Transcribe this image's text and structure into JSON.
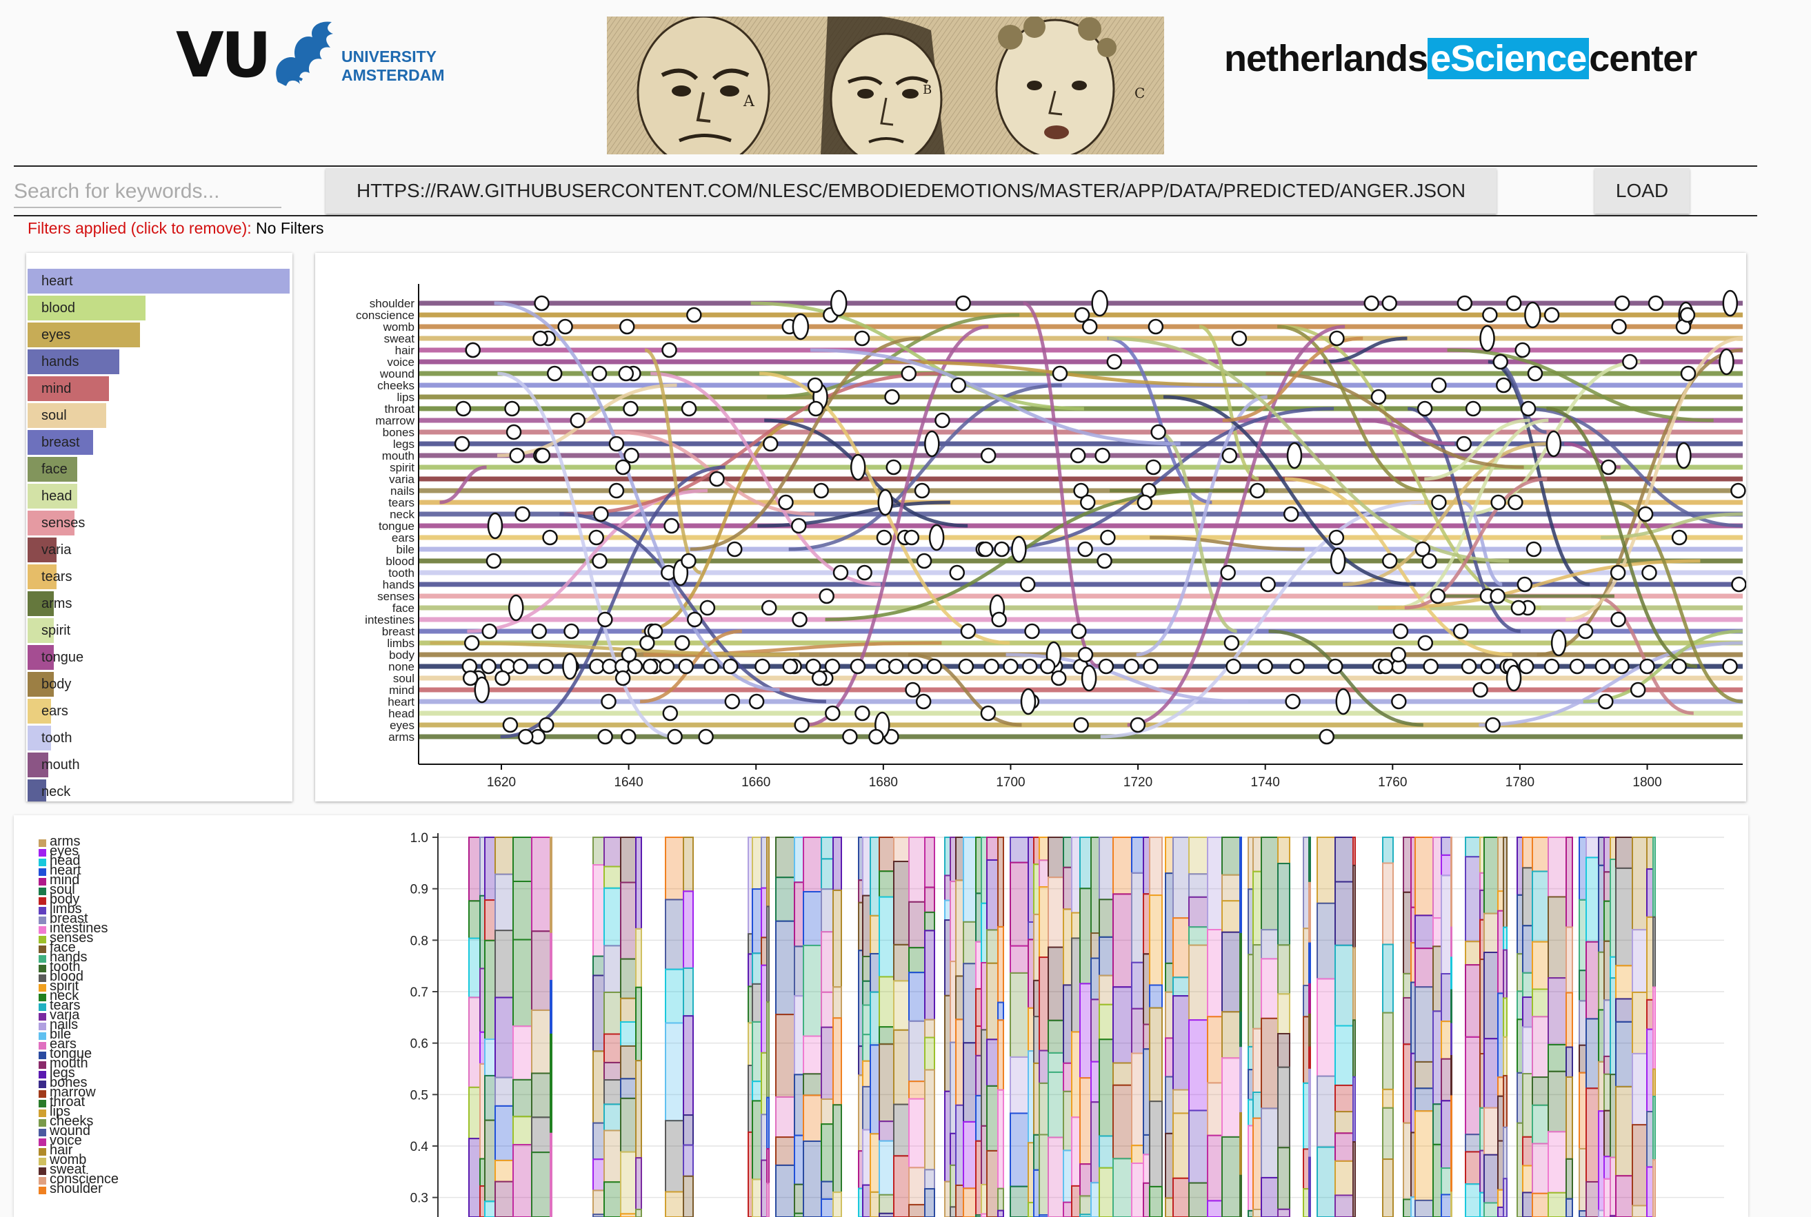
{
  "header": {
    "vu_logo": {
      "mark": "VU",
      "line1": "UNIVERSITY",
      "line2": "AMSTERDAM"
    },
    "banner_image": {
      "letters": [
        "A",
        "B",
        "C"
      ]
    },
    "nlesc_logo": {
      "pre": "netherlands",
      "highlight": "eScience",
      "post": "center"
    }
  },
  "controls": {
    "search_placeholder": "Search for keywords...",
    "url_value": "HTTPS://RAW.GITHUBUSERCONTENT.COM/NLESC/EMBODIEDEMOTIONS/MASTER/APP/DATA/PREDICTED/ANGER.JSON",
    "load_label": "LOAD",
    "filters_label": "Filters applied (click to remove):",
    "filters_value": "No Filters"
  },
  "keyword_bars": [
    {
      "label": "heart",
      "value": 1.0,
      "color": "#a5a9e0"
    },
    {
      "label": "blood",
      "value": 0.45,
      "color": "#c3dd86"
    },
    {
      "label": "eyes",
      "value": 0.43,
      "color": "#c7ac56"
    },
    {
      "label": "hands",
      "value": 0.35,
      "color": "#6a6fb3"
    },
    {
      "label": "mind",
      "value": 0.31,
      "color": "#c6696e"
    },
    {
      "label": "soul",
      "value": 0.3,
      "color": "#ebd2a3"
    },
    {
      "label": "breast",
      "value": 0.25,
      "color": "#6d71bd"
    },
    {
      "label": "face",
      "value": 0.19,
      "color": "#82955c"
    },
    {
      "label": "head",
      "value": 0.19,
      "color": "#d3e2a6"
    },
    {
      "label": "senses",
      "value": 0.18,
      "color": "#e59aa2"
    },
    {
      "label": "varia",
      "value": 0.11,
      "color": "#8b4a4c"
    },
    {
      "label": "tears",
      "value": 0.11,
      "color": "#e6bd68"
    },
    {
      "label": "arms",
      "value": 0.1,
      "color": "#65783d"
    },
    {
      "label": "spirit",
      "value": 0.1,
      "color": "#d2e3a6"
    },
    {
      "label": "tongue",
      "value": 0.1,
      "color": "#a54d92"
    },
    {
      "label": "body",
      "value": 0.1,
      "color": "#9c7f44"
    },
    {
      "label": "ears",
      "value": 0.09,
      "color": "#ebcf7e"
    },
    {
      "label": "tooth",
      "value": 0.09,
      "color": "#c6c9ef"
    },
    {
      "label": "mouth",
      "value": 0.08,
      "color": "#8b5585"
    },
    {
      "label": "neck",
      "value": 0.07,
      "color": "#595f96"
    }
  ],
  "chart_data": [
    {
      "type": "line",
      "x_ticks": [
        1620,
        1640,
        1660,
        1680,
        1700,
        1720,
        1740,
        1760,
        1780,
        1800
      ],
      "xlim": [
        1607,
        1815
      ],
      "categories": [
        "shoulder",
        "conscience",
        "womb",
        "sweat",
        "hair",
        "voice",
        "wound",
        "cheeks",
        "lips",
        "throat",
        "marrow",
        "bones",
        "legs",
        "mouth",
        "spirit",
        "varia",
        "nails",
        "tears",
        "neck",
        "tongue",
        "ears",
        "bile",
        "blood",
        "tooth",
        "hands",
        "senses",
        "face",
        "intestines",
        "breast",
        "limbs",
        "body",
        "none",
        "soul",
        "mind",
        "heart",
        "head",
        "eyes",
        "arms"
      ],
      "row_colors": [
        "#7c4e80",
        "#bf9a3e",
        "#c78a4a",
        "#d7b96e",
        "#b85b9e",
        "#9a4a8f",
        "#7a9344",
        "#8a8fd6",
        "#8c8a3c",
        "#6e8a3a",
        "#a65a98",
        "#c77b85",
        "#4a4f8f",
        "#8b5585",
        "#a8c36a",
        "#8b3a3c",
        "#9c8a52",
        "#e0b860",
        "#5a609c",
        "#a54d92",
        "#e8c870",
        "#b0b3e6",
        "#6a7a36",
        "#c9cbf0",
        "#4e5394",
        "#e8a3a8",
        "#b4c47c",
        "#e39ac8",
        "#6d71bd",
        "#b8c46a",
        "#9c7f44",
        "#2e3a6a",
        "#ebd2a3",
        "#c6696e",
        "#a5a9e0",
        "#d3e2a6",
        "#c7ac56",
        "#65783d"
      ],
      "none_points": [
        1615,
        1618,
        1621,
        1623,
        1627,
        1631,
        1635,
        1637,
        1639,
        1641,
        1644,
        1646,
        1649,
        1653,
        1656,
        1661,
        1666,
        1669,
        1672,
        1676,
        1680,
        1682,
        1685,
        1688,
        1693,
        1697,
        1700,
        1703,
        1707,
        1711,
        1715,
        1719,
        1722,
        1735,
        1740,
        1745,
        1751,
        1758,
        1761,
        1766,
        1772,
        1775,
        1778,
        1781,
        1785,
        1789,
        1793,
        1796,
        1800,
        1805,
        1813
      ],
      "peaks": [
        {
          "x": 1667,
          "label": "womb"
        },
        {
          "x": 1673,
          "label": "shoulder"
        },
        {
          "x": 1714,
          "label": "shoulder"
        },
        {
          "x": 1782,
          "label": "conscience"
        }
      ]
    },
    {
      "type": "area",
      "y_ticks": [
        "1.0",
        "0.9",
        "0.8",
        "0.7",
        "0.6",
        "0.5",
        "0.4",
        "0.3"
      ],
      "ylim": [
        0.25,
        1.0
      ],
      "series": [
        "arms",
        "eyes",
        "head",
        "heart",
        "mind",
        "soul",
        "body",
        "limbs",
        "breast",
        "intestines",
        "senses",
        "face",
        "hands",
        "tooth",
        "blood",
        "spirit",
        "neck",
        "tears",
        "varia",
        "nails",
        "bile",
        "ears",
        "tongue",
        "mouth",
        "legs",
        "bones",
        "marrow",
        "throat",
        "lips",
        "cheeks",
        "wound",
        "voice",
        "hair",
        "womb",
        "sweat",
        "conscience",
        "shoulder"
      ],
      "legend_colors": [
        "#c8a060",
        "#a020f0",
        "#19c8dc",
        "#2050d8",
        "#b01a8a",
        "#1a7a4a",
        "#c02020",
        "#603fbf",
        "#8a8ac0",
        "#f07ad0",
        "#9cc02a",
        "#7a5a2a",
        "#40b080",
        "#3a6a2a",
        "#5a5a5a",
        "#f0a020",
        "#208020",
        "#20b0c0",
        "#7a2aa0",
        "#b0a0e0",
        "#60c0f0",
        "#e070c0",
        "#2a4aa0",
        "#8a2a6a",
        "#5a1ab0",
        "#3a2a8a",
        "#a03a1a",
        "#2a7a2a",
        "#d0a030",
        "#7a9a4a",
        "#4a5aa0",
        "#c02aa0",
        "#b08a2a",
        "#d0c060",
        "#5a2a2a",
        "#e0a080",
        "#f08020"
      ]
    }
  ]
}
